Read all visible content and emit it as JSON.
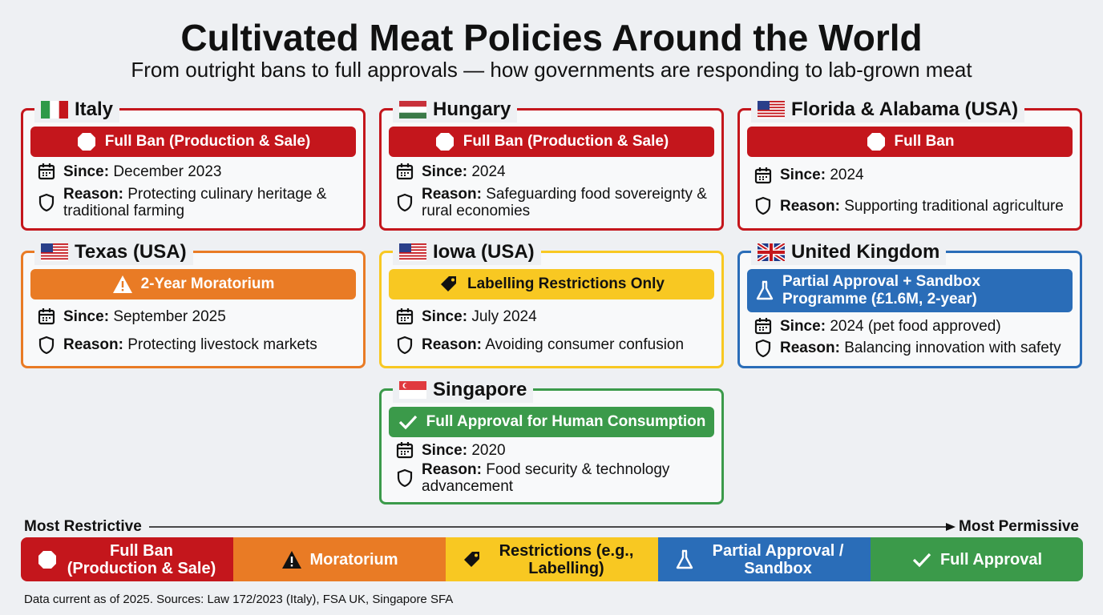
{
  "header": {
    "title": "Cultivated Meat Policies Around the World",
    "subtitle": "From outright bans to full approvals — how governments are responding to lab-grown meat"
  },
  "labels": {
    "since": "Since:",
    "reason": "Reason:"
  },
  "cards": [
    {
      "name": "Italy",
      "status": "Full Ban (Production & Sale)",
      "color": "#c4161c",
      "since": "December 2023",
      "reason": "Protecting culinary heritage & traditional farming"
    },
    {
      "name": "Hungary",
      "status": "Full Ban (Production & Sale)",
      "color": "#c4161c",
      "since": "2024",
      "reason": "Safeguarding food sovereignty & rural economies"
    },
    {
      "name": "Florida & Alabama (USA)",
      "status": "Full Ban",
      "color": "#c4161c",
      "since": "2024",
      "reason": "Supporting traditional agriculture"
    },
    {
      "name": "Texas (USA)",
      "status": "2-Year Moratorium",
      "color": "#e97b25",
      "since": "September 2025",
      "reason": "Protecting livestock markets"
    },
    {
      "name": "Iowa (USA)",
      "status": "Labelling Restrictions Only",
      "color": "#f8c822",
      "since": "July 2024",
      "reason": "Avoiding consumer confusion"
    },
    {
      "name": "United Kingdom",
      "status": "Partial Approval + Sandbox Programme (£1.6M, 2-year)",
      "color": "#2a6db8",
      "since": "2024 (pet food approved)",
      "reason": "Balancing innovation with safety"
    },
    {
      "name": "Singapore",
      "status": "Full Approval for Human Consumption",
      "color": "#3b9a4a",
      "since": "2020",
      "reason": "Food security & technology advancement"
    }
  ],
  "scale": {
    "left": "Most Restrictive",
    "right": "Most Permissive",
    "segments": [
      {
        "label": "Full Ban (Production & Sale)",
        "color": "#c4161c"
      },
      {
        "label": "Moratorium",
        "color": "#e97b25"
      },
      {
        "label": "Restrictions (e.g., Labelling)",
        "color": "#f8c822"
      },
      {
        "label": "Partial Approval / Sandbox",
        "color": "#2a6db8"
      },
      {
        "label": "Full Approval",
        "color": "#3b9a4a"
      }
    ]
  },
  "footer": "Data current as of 2025. Sources: Law 172/2023 (Italy), FSA UK, Singapore SFA"
}
